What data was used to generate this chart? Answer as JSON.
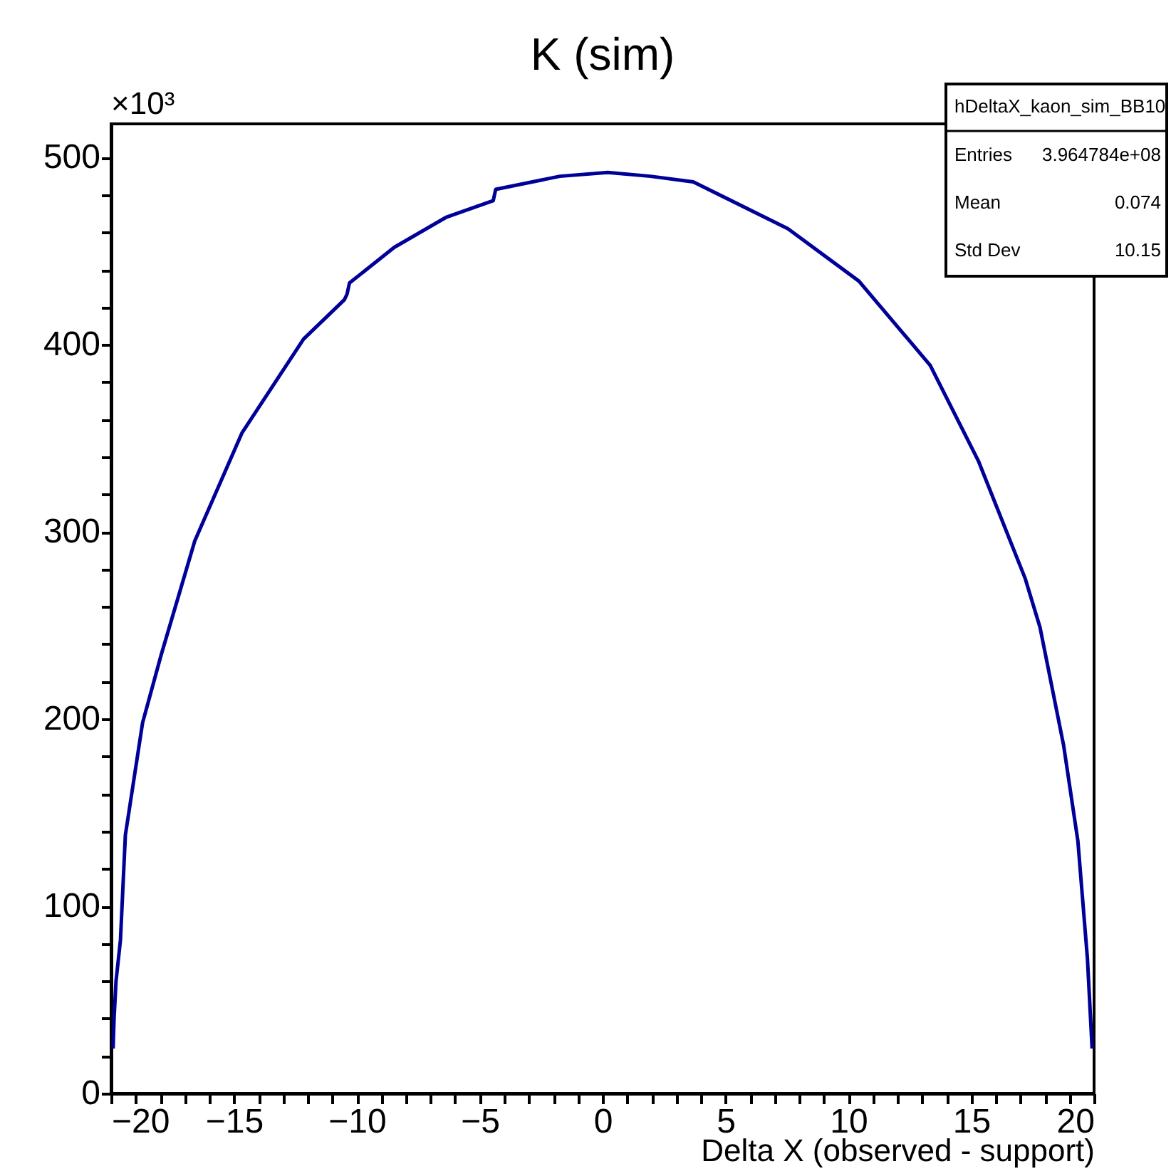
{
  "chart_data": {
    "type": "line",
    "title": "K (sim)",
    "xlabel": "Delta X (observed - support)",
    "annotations": [
      "×10³",
      "hDeltaX_kaon_sim_BB10",
      "Entries",
      "3.964784e+08",
      "Mean",
      "0.074",
      "Std Dev",
      "10.15"
    ],
    "series": [
      {
        "color": "#000099",
        "x": [
          -19.92,
          -19.88,
          -19.8,
          -19.62,
          -19.42,
          -18.72,
          -17.97,
          -16.6,
          -14.67,
          -12.17,
          -10.51,
          -10.4,
          -10.3,
          -8.48,
          -6.38,
          -4.45,
          -4.35,
          -1.74,
          0.21,
          1.95,
          3.69,
          7.54,
          10.43,
          13.33,
          15.29,
          17.2,
          17.8,
          18.76,
          19.34,
          19.73,
          19.92
        ],
        "values": [
          24,
          40,
          60,
          82,
          138,
          198,
          234,
          295,
          353,
          403,
          424,
          427,
          433,
          452,
          468,
          477,
          483,
          490,
          492,
          490,
          487,
          462,
          434,
          389,
          338,
          275,
          249,
          186,
          135,
          72,
          24
        ]
      }
    ],
    "xlim": [
      -20,
      20
    ],
    "ylim": [
      0,
      518
    ],
    "xticks": [
      -20,
      {
        "value": -19,
        "label": null
      },
      {
        "value": -18,
        "label": null
      },
      {
        "value": -17,
        "label": null
      },
      {
        "value": -16,
        "label": null
      },
      -15,
      {
        "value": -14,
        "label": null
      },
      {
        "value": -13,
        "label": null
      },
      {
        "value": -12,
        "label": null
      },
      {
        "value": -11,
        "label": null
      },
      -10,
      {
        "value": -9,
        "label": null
      },
      {
        "value": -8,
        "label": null
      },
      {
        "value": -7,
        "label": null
      },
      {
        "value": -6,
        "label": null
      },
      -5,
      {
        "value": -4,
        "label": null
      },
      {
        "value": -3,
        "label": null
      },
      {
        "value": -2,
        "label": null
      },
      {
        "value": -1,
        "label": null
      },
      0,
      {
        "value": 1,
        "label": null
      },
      {
        "value": 2,
        "label": null
      },
      {
        "value": 3,
        "label": null
      },
      {
        "value": 4,
        "label": null
      },
      5,
      {
        "value": 6,
        "label": null
      },
      {
        "value": 7,
        "label": null
      },
      {
        "value": 8,
        "label": null
      },
      {
        "value": 9,
        "label": null
      },
      10,
      {
        "value": 11,
        "label": null
      },
      {
        "value": 12,
        "label": null
      },
      {
        "value": 13,
        "label": null
      },
      {
        "value": 14,
        "label": null
      },
      15,
      {
        "value": 16,
        "label": null
      },
      {
        "value": 17,
        "label": null
      },
      {
        "value": 18,
        "label": null
      },
      {
        "value": 19,
        "label": null
      },
      20
    ],
    "yticks": [
      0,
      {
        "value": 20,
        "label": null
      },
      {
        "value": 40,
        "label": null
      },
      {
        "value": 60,
        "label": null
      },
      {
        "value": 80,
        "label": null
      },
      100,
      {
        "value": 120,
        "label": null
      },
      {
        "value": 140,
        "label": null
      },
      {
        "value": 160,
        "label": null
      },
      {
        "value": 180,
        "label": null
      },
      200,
      {
        "value": 220,
        "label": null
      },
      {
        "value": 240,
        "label": null
      },
      {
        "value": 260,
        "label": null
      },
      {
        "value": 280,
        "label": null
      },
      300,
      {
        "value": 320,
        "label": null
      },
      {
        "value": 340,
        "label": null
      },
      {
        "value": 360,
        "label": null
      },
      {
        "value": 380,
        "label": null
      },
      400,
      {
        "value": 420,
        "label": null
      },
      {
        "value": 440,
        "label": null
      },
      {
        "value": 460,
        "label": null
      },
      {
        "value": 480,
        "label": null
      },
      500
    ],
    "grid": false,
    "marker": "none",
    "line_style": "solid"
  }
}
